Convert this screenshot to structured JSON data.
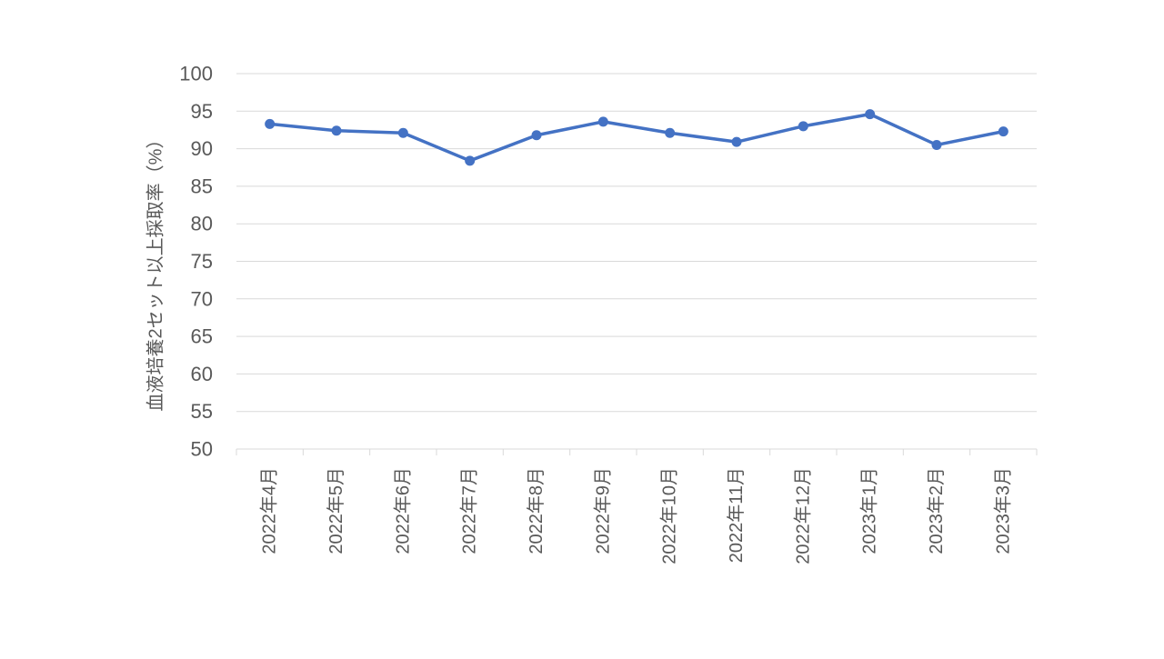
{
  "chart_data": {
    "type": "line",
    "title": "",
    "xlabel": "",
    "ylabel": "血液培養2セット以上採取率（%）",
    "categories": [
      "2022年4月",
      "2022年5月",
      "2022年6月",
      "2022年7月",
      "2022年8月",
      "2022年9月",
      "2022年10月",
      "2022年11月",
      "2022年12月",
      "2023年1月",
      "2023年2月",
      "2023年3月"
    ],
    "series": [
      {
        "values": [
          93.3,
          92.4,
          92.1,
          88.4,
          91.8,
          93.6,
          92.1,
          90.9,
          93.0,
          94.6,
          90.5,
          92.3
        ]
      }
    ],
    "yticks": [
      "50",
      "55",
      "60",
      "65",
      "70",
      "75",
      "80",
      "85",
      "90",
      "95",
      "100"
    ],
    "ylim": [
      50,
      100
    ],
    "grid": true,
    "legend": "none",
    "colors": {
      "line": "#4472C4",
      "grid": "#D9D9D9",
      "text": "#595959"
    }
  }
}
